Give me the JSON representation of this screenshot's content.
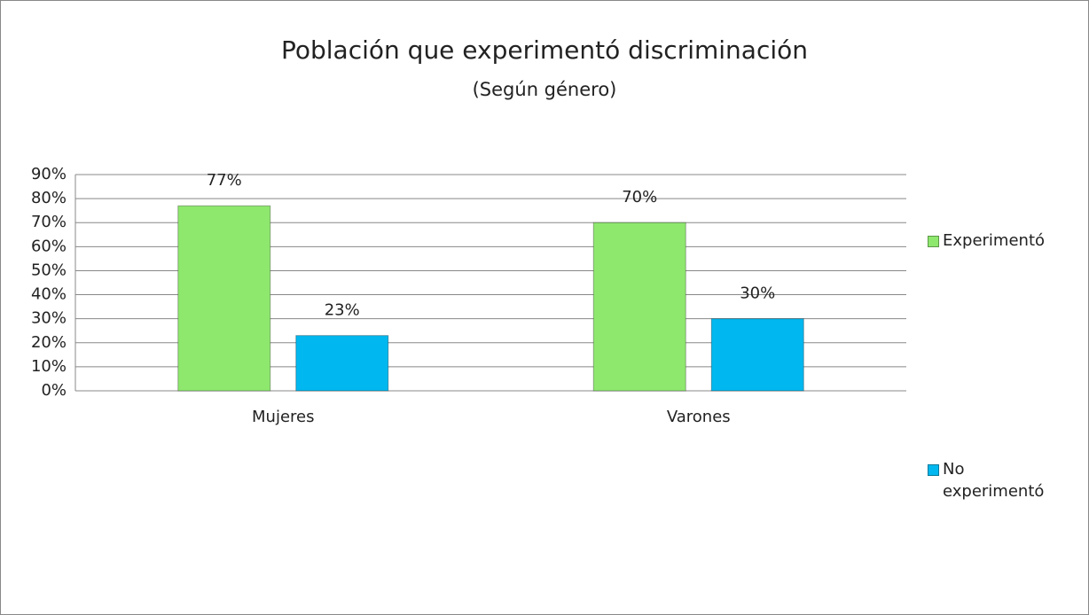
{
  "chart_data": {
    "type": "bar",
    "title": "Población que experimentó discriminación",
    "subtitle": "(Según género)",
    "categories": [
      "Mujeres",
      "Varones"
    ],
    "series": [
      {
        "name": "Experimentó",
        "color": "#8ee86e",
        "values": [
          77,
          70
        ],
        "value_labels": [
          "77%",
          "70%"
        ]
      },
      {
        "name": "No experimentó",
        "color": "#00b8ef",
        "values": [
          23,
          30
        ],
        "value_labels": [
          "23%",
          "30%"
        ]
      }
    ],
    "ylim": [
      0,
      90
    ],
    "yticks": [
      {
        "value": 0,
        "label": "0%"
      },
      {
        "value": 10,
        "label": "10%"
      },
      {
        "value": 20,
        "label": "20%"
      },
      {
        "value": 30,
        "label": "30%"
      },
      {
        "value": 40,
        "label": "40%"
      },
      {
        "value": 50,
        "label": "50%"
      },
      {
        "value": 60,
        "label": "60%"
      },
      {
        "value": 70,
        "label": "70%"
      },
      {
        "value": 80,
        "label": "80%"
      },
      {
        "value": 90,
        "label": "90%"
      }
    ],
    "grid": true,
    "legend": "right"
  }
}
